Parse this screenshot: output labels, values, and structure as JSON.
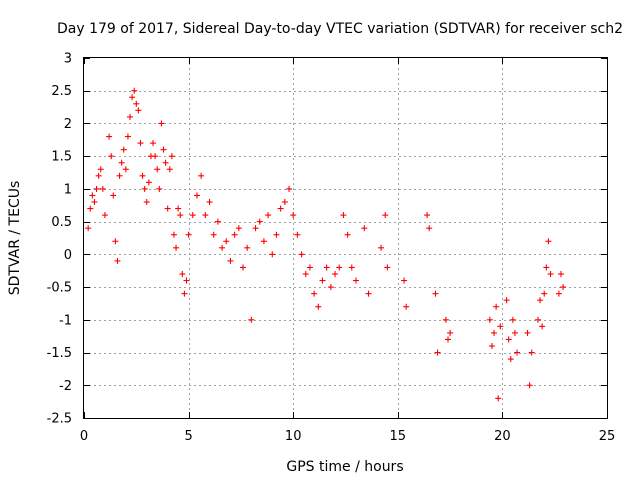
{
  "chart_data": {
    "type": "scatter",
    "title": "Day 179 of 2017, Sidereal Day-to-day VTEC variation (SDTVAR) for receiver sch2",
    "xlabel": "GPS time / hours",
    "ylabel": "SDTVAR / TECUs",
    "xlim": [
      0,
      25
    ],
    "ylim": [
      -2.5,
      3
    ],
    "xticks": [
      0,
      5,
      10,
      15,
      20,
      25
    ],
    "yticks": [
      -2.5,
      -2,
      -1.5,
      -1,
      -0.5,
      0,
      0.5,
      1,
      1.5,
      2,
      2.5,
      3
    ],
    "xtick_labels": [
      "0",
      "5",
      "10",
      "15",
      "20",
      "25"
    ],
    "ytick_labels": [
      "-2.5",
      "-2",
      "-1.5",
      "-1",
      "-0.5",
      "0",
      "0.5",
      "1",
      "1.5",
      "2",
      "2.5",
      "3"
    ],
    "grid": true,
    "marker": "+",
    "marker_color": "#ff0000",
    "series": [
      {
        "name": "SDTVAR",
        "x": [
          0.2,
          0.3,
          0.4,
          0.5,
          0.6,
          0.7,
          0.8,
          0.9,
          1.0,
          1.2,
          1.3,
          1.4,
          1.5,
          1.6,
          1.7,
          1.8,
          1.9,
          2.0,
          2.1,
          2.2,
          2.3,
          2.4,
          2.5,
          2.6,
          2.7,
          2.8,
          2.9,
          3.0,
          3.1,
          3.2,
          3.3,
          3.4,
          3.5,
          3.6,
          3.7,
          3.8,
          3.9,
          4.0,
          4.1,
          4.2,
          4.3,
          4.4,
          4.5,
          4.6,
          4.7,
          4.8,
          4.9,
          5.0,
          5.2,
          5.4,
          5.6,
          5.8,
          6.0,
          6.2,
          6.4,
          6.6,
          6.8,
          7.0,
          7.2,
          7.4,
          7.6,
          7.8,
          8.0,
          8.2,
          8.4,
          8.6,
          8.8,
          9.0,
          9.2,
          9.4,
          9.6,
          9.8,
          10.0,
          10.2,
          10.4,
          10.6,
          10.8,
          11.0,
          11.2,
          11.4,
          11.6,
          11.8,
          12.0,
          12.2,
          12.4,
          12.6,
          12.8,
          13.0,
          13.4,
          13.6,
          14.2,
          14.4,
          14.5,
          15.3,
          15.4,
          16.4,
          16.5,
          16.8,
          16.9,
          17.3,
          17.4,
          17.5,
          19.4,
          19.5,
          19.6,
          19.7,
          19.8,
          19.9,
          20.2,
          20.3,
          20.4,
          20.5,
          20.6,
          20.7,
          21.2,
          21.3,
          21.4,
          21.7,
          21.8,
          21.9,
          22.0,
          22.1,
          22.2,
          22.3,
          22.7,
          22.8,
          22.9
        ],
        "y": [
          0.4,
          0.7,
          0.9,
          0.8,
          1.0,
          1.2,
          1.3,
          1.0,
          0.6,
          1.8,
          1.5,
          0.9,
          0.2,
          -0.1,
          1.2,
          1.4,
          1.6,
          1.3,
          1.8,
          2.1,
          2.4,
          2.5,
          2.3,
          2.2,
          1.7,
          1.2,
          1.0,
          0.8,
          1.1,
          1.5,
          1.7,
          1.5,
          1.3,
          1.0,
          2.0,
          1.6,
          1.4,
          0.7,
          1.3,
          1.5,
          0.3,
          0.1,
          0.7,
          0.6,
          -0.3,
          -0.6,
          -0.4,
          0.3,
          0.6,
          0.9,
          1.2,
          0.6,
          0.8,
          0.3,
          0.5,
          0.1,
          0.2,
          -0.1,
          0.3,
          0.4,
          -0.2,
          0.1,
          -1.0,
          0.4,
          0.5,
          0.2,
          0.6,
          0.0,
          0.3,
          0.7,
          0.8,
          1.0,
          0.6,
          0.3,
          0.0,
          -0.3,
          -0.2,
          -0.6,
          -0.8,
          -0.4,
          -0.2,
          -0.5,
          -0.3,
          -0.2,
          0.6,
          0.3,
          -0.2,
          -0.4,
          0.4,
          -0.6,
          0.1,
          0.6,
          -0.2,
          -0.4,
          -0.8,
          0.6,
          0.4,
          -0.6,
          -1.5,
          -1.0,
          -1.3,
          -1.2,
          -1.0,
          -1.4,
          -1.2,
          -0.8,
          -2.2,
          -1.1,
          -0.7,
          -1.3,
          -1.6,
          -1.0,
          -1.2,
          -1.5,
          -1.2,
          -2.0,
          -1.5,
          -1.0,
          -0.7,
          -1.1,
          -0.6,
          -0.2,
          0.2,
          -0.3,
          -0.6,
          -0.3,
          -0.5
        ]
      }
    ]
  }
}
